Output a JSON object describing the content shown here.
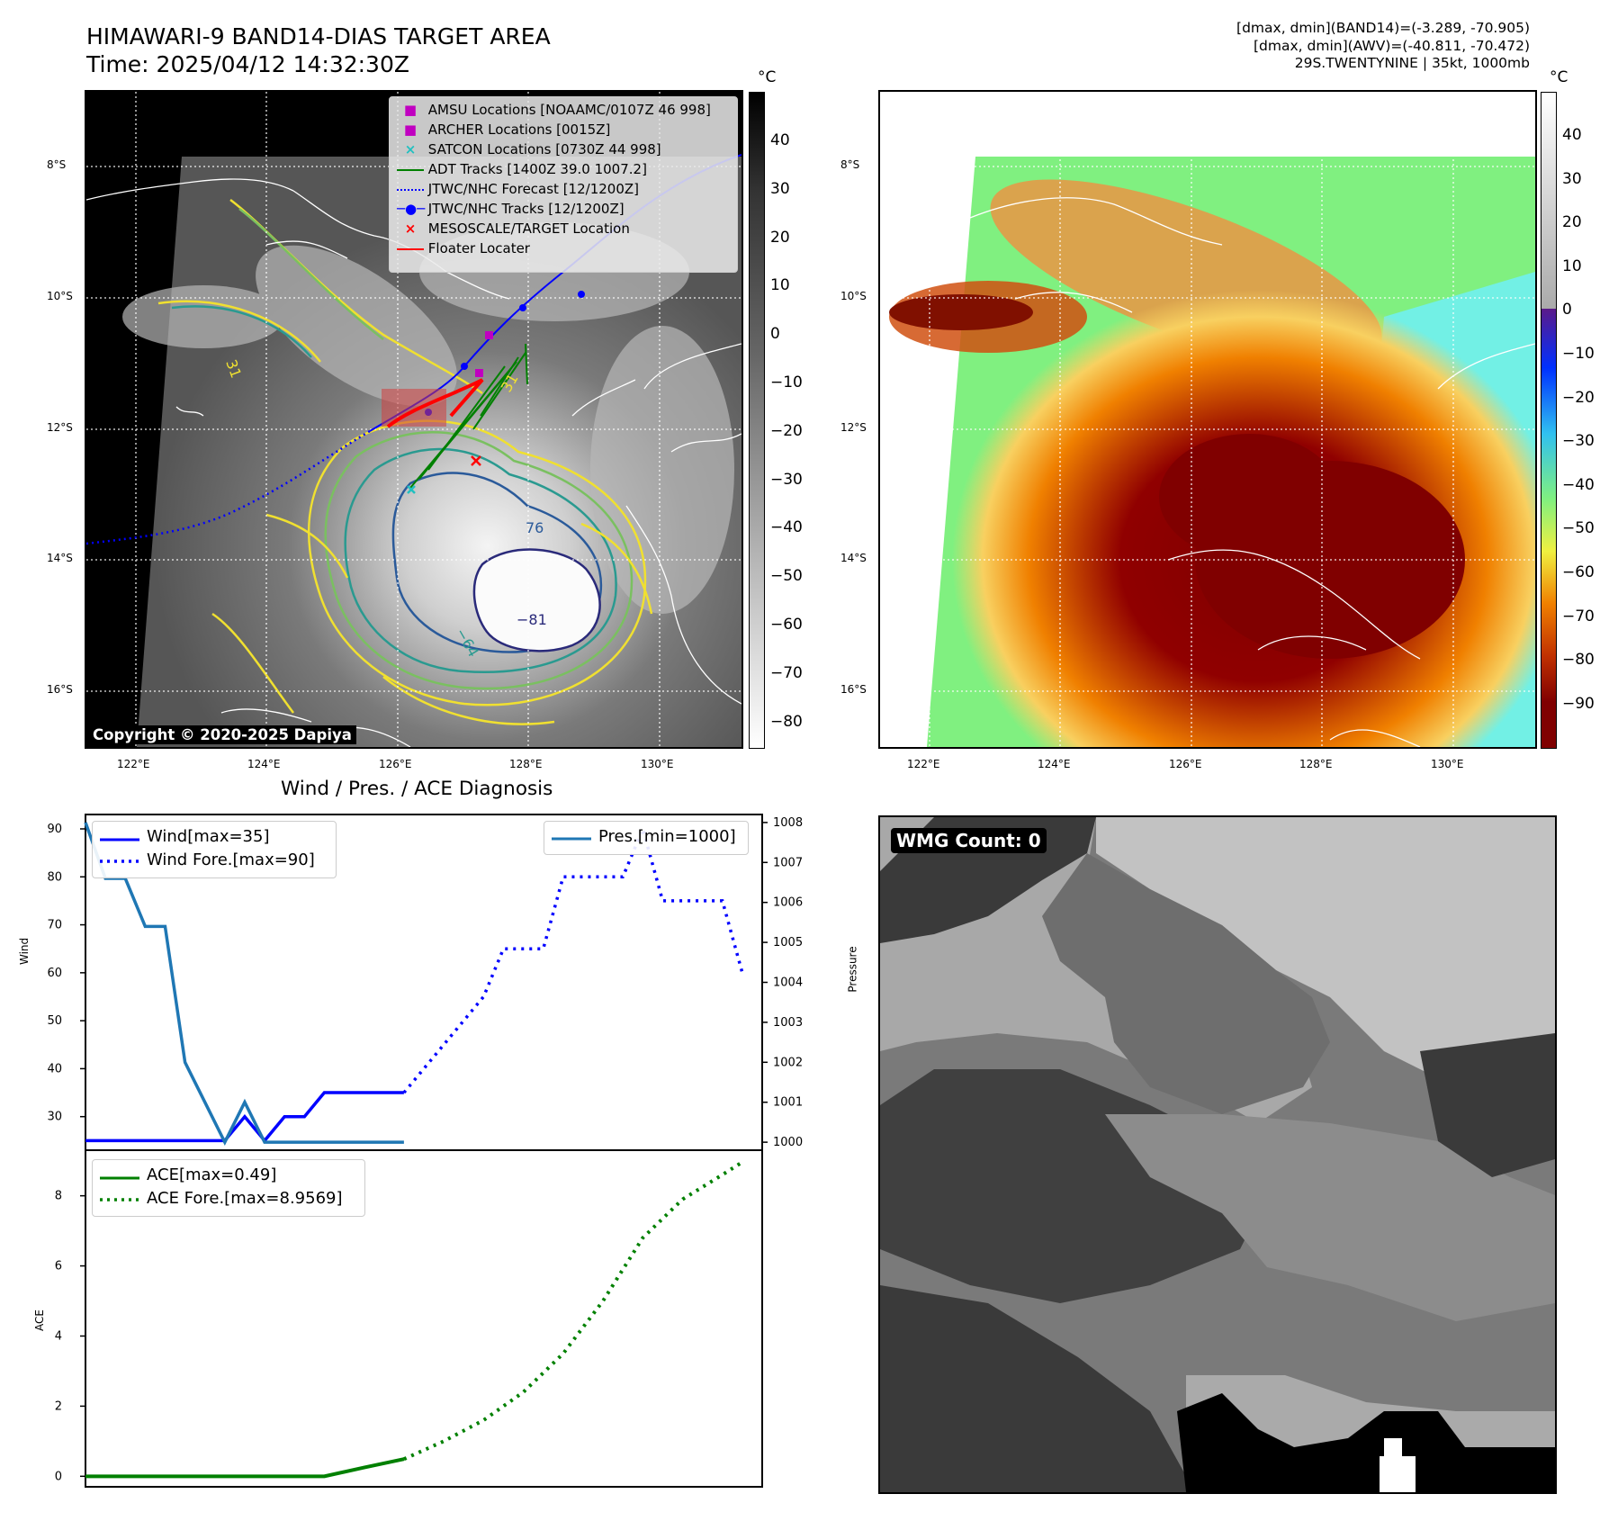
{
  "header": {
    "title_line1": "HIMAWARI-9 BAND14-DIAS TARGET AREA",
    "title_line2": "Time: 2025/04/12 14:32:30Z",
    "info_line1": "[dmax, dmin](BAND14)=(-3.289, -70.905)",
    "info_line2": "[dmax, dmin](AWV)=(-40.811, -70.472)",
    "info_line3": "29S.TWENTYNINE | 35kt, 1000mb"
  },
  "map": {
    "lat_labels": [
      "8°S",
      "10°S",
      "12°S",
      "14°S",
      "16°S"
    ],
    "lon_labels": [
      "122°E",
      "124°E",
      "126°E",
      "128°E",
      "130°E"
    ],
    "copyright": "Copyright © 2020-2025 Dapiya",
    "contour_labels": [
      "76",
      "−81",
      "−64",
      "31",
      "31"
    ],
    "legend": [
      {
        "label": "AMSU Locations [NOAAMC/0107Z 46 998]",
        "color": "#c000c0",
        "icon": "square-marker"
      },
      {
        "label": "ARCHER Locations [0015Z]",
        "color": "#c000c0",
        "icon": "square-marker"
      },
      {
        "label": "SATCON Locations [0730Z 44 998]",
        "color": "#20c0c0",
        "icon": "x-marker"
      },
      {
        "label": "ADT Tracks [1400Z 39.0 1007.2]",
        "color": "#008000",
        "icon": "solid-line"
      },
      {
        "label": "JTWC/NHC Forecast [12/1200Z]",
        "color": "#0000ff",
        "icon": "dotted-line"
      },
      {
        "label": "JTWC/NHC Tracks [12/1200Z]",
        "color": "#0000ff",
        "icon": "line-dot"
      },
      {
        "label": "MESOSCALE/TARGET Location",
        "color": "#ff0000",
        "icon": "x-marker"
      },
      {
        "label": "Floater Locater",
        "color": "#ff0000",
        "icon": "solid-line"
      }
    ]
  },
  "colorbar1": {
    "unit": "°C",
    "ticks": [
      "40",
      "30",
      "20",
      "10",
      "0",
      "−10",
      "−20",
      "−30",
      "−40",
      "−50",
      "−60",
      "−70",
      "−80"
    ]
  },
  "colorbar2": {
    "unit": "°C",
    "ticks": [
      "40",
      "30",
      "20",
      "10",
      "0",
      "−10",
      "−20",
      "−30",
      "−40",
      "−50",
      "−60",
      "−70",
      "−80",
      "−90"
    ]
  },
  "wmg": {
    "label": "WMG Count: 0"
  },
  "chart_data": [
    {
      "type": "line",
      "title": "Wind / Pres. / ACE Diagnosis",
      "ylabel": "Wind",
      "y2label": "Pressure",
      "ylim": [
        23,
        93
      ],
      "y2lim": [
        999.8,
        1008.2
      ],
      "yticks": [
        30,
        40,
        50,
        60,
        70,
        80,
        90
      ],
      "y2ticks": [
        1000,
        1001,
        1002,
        1003,
        1004,
        1005,
        1006,
        1007,
        1008
      ],
      "xlim": [
        0,
        34
      ],
      "legend_left": [
        "Wind[max=35]",
        "Wind Fore.[max=90]"
      ],
      "legend_right": [
        "Pres.[min=1000]"
      ],
      "series": [
        {
          "name": "Wind[max=35]",
          "axis": "left",
          "color": "#0000ff",
          "style": "solid",
          "x": [
            0,
            6,
            7,
            8,
            9,
            10,
            11,
            12,
            13,
            14,
            15,
            16
          ],
          "y": [
            25,
            25,
            25,
            30,
            25,
            30,
            30,
            35,
            35,
            35,
            35,
            35
          ]
        },
        {
          "name": "Wind Fore.[max=90]",
          "axis": "left",
          "color": "#0000ff",
          "style": "dotted",
          "x": [
            16,
            17,
            18,
            19,
            20,
            21,
            22,
            23,
            24,
            25,
            26,
            27,
            28,
            29,
            30,
            31,
            32,
            33
          ],
          "y": [
            35,
            40,
            45,
            50,
            55,
            65,
            65,
            65,
            80,
            80,
            80,
            80,
            90,
            75,
            75,
            75,
            75,
            60
          ]
        },
        {
          "name": "Pres.[min=1000]",
          "axis": "right",
          "color": "#1f77b4",
          "style": "solid",
          "x": [
            0,
            1,
            2,
            3,
            4,
            5,
            6,
            7,
            8,
            9,
            10,
            11,
            12,
            13,
            14,
            15,
            16
          ],
          "y": [
            1008,
            1006.6,
            1006.6,
            1005.4,
            1005.4,
            1002,
            1001,
            1000,
            1001,
            1000,
            1000,
            1000,
            1000,
            1000,
            1000,
            1000,
            1000
          ]
        }
      ]
    },
    {
      "type": "line",
      "ylabel": "ACE",
      "ylim": [
        -0.3,
        9.3
      ],
      "yticks": [
        0,
        2,
        4,
        6,
        8
      ],
      "xlim": [
        0,
        34
      ],
      "legend": [
        "ACE[max=0.49]",
        "ACE Fore.[max=8.9569]"
      ],
      "series": [
        {
          "name": "ACE[max=0.49]",
          "color": "#008000",
          "style": "solid",
          "x": [
            0,
            6,
            10,
            12,
            14,
            16
          ],
          "y": [
            0,
            0,
            0,
            0,
            0.25,
            0.49
          ]
        },
        {
          "name": "ACE Fore.[max=8.9569]",
          "color": "#008000",
          "style": "dotted",
          "x": [
            16,
            18,
            20,
            22,
            24,
            26,
            28,
            30,
            32,
            33
          ],
          "y": [
            0.49,
            1.0,
            1.6,
            2.4,
            3.5,
            5.0,
            6.8,
            7.9,
            8.6,
            8.96
          ]
        }
      ]
    }
  ]
}
